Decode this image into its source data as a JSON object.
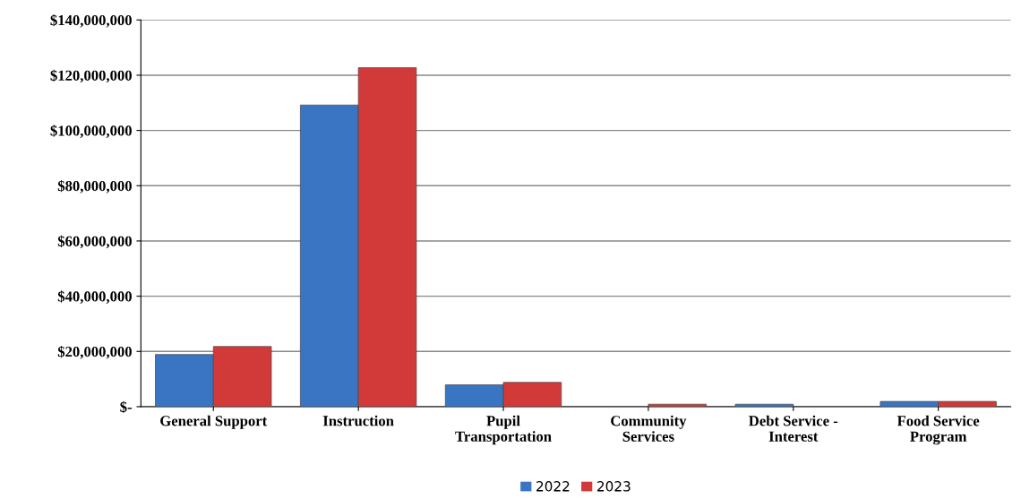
{
  "chart_data": {
    "type": "bar",
    "categories": [
      "General Support",
      "Instruction",
      "Pupil\nTransportation",
      "Community\nServices",
      "Debt Service -\nInterest",
      "Food Service\nProgram"
    ],
    "series": [
      {
        "name": "2022",
        "color": "#3a75c4",
        "values": [
          18900000,
          109200000,
          7900000,
          null,
          900000,
          1900000
        ]
      },
      {
        "name": "2023",
        "color": "#d23a3a",
        "values": [
          21800000,
          122700000,
          8800000,
          900000,
          null,
          1900000
        ]
      }
    ],
    "ylim": [
      0,
      140000000
    ],
    "yticks": [
      {
        "value": 0,
        "label": "$-"
      },
      {
        "value": 20000000,
        "label": "$20,000,000"
      },
      {
        "value": 40000000,
        "label": "$40,000,000"
      },
      {
        "value": 60000000,
        "label": "$60,000,000"
      },
      {
        "value": 80000000,
        "label": "$80,000,000"
      },
      {
        "value": 100000000,
        "label": "$100,000,000"
      },
      {
        "value": 120000000,
        "label": "$120,000,000"
      },
      {
        "value": 140000000,
        "label": "$140,000,000"
      }
    ],
    "grid": "y",
    "legend": "bottom"
  }
}
